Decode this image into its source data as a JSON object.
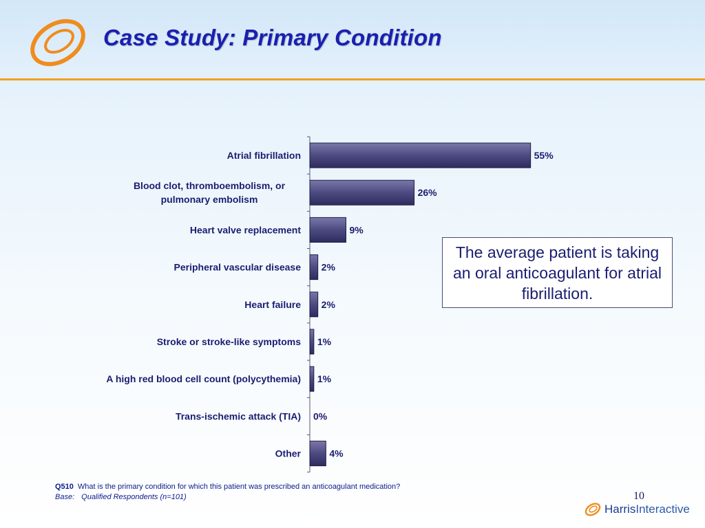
{
  "header": {
    "title": "Case Study: Primary Condition",
    "logo_icon": "harris-orbit-logo-icon"
  },
  "colors": {
    "accent_rule": "#f0a020",
    "title": "#1a1fb0",
    "bar_fill": "#4c4a80",
    "logo_orange": "#f08c1e"
  },
  "chart_data": {
    "type": "bar",
    "orientation": "horizontal",
    "categories": [
      "Atrial fibrillation",
      "Blood clot, thromboembolism, or pulmonary embolism",
      "Heart valve replacement",
      "Peripheral vascular disease",
      "Heart failure",
      "Stroke or stroke-like symptoms",
      "A high red blood cell count (polycythemia)",
      "Trans-ischemic attack (TIA)",
      "Other"
    ],
    "category_lines": [
      [
        "Atrial fibrillation"
      ],
      [
        "Blood clot, thromboembolism, or",
        "pulmonary embolism"
      ],
      [
        "Heart valve replacement"
      ],
      [
        "Peripheral vascular disease"
      ],
      [
        "Heart failure"
      ],
      [
        "Stroke or stroke-like symptoms"
      ],
      [
        "A high red blood cell count (polycythemia)"
      ],
      [
        "Trans-ischemic attack (TIA)"
      ],
      [
        "Other"
      ]
    ],
    "values": [
      55,
      26,
      9,
      2,
      2,
      1,
      1,
      0,
      4
    ],
    "data_labels": [
      "55%",
      "26%",
      "9%",
      "2%",
      "2%",
      "1%",
      "1%",
      "0%",
      "4%"
    ],
    "xlim": [
      0,
      100
    ],
    "grid": false,
    "legend": false
  },
  "callout": {
    "text": "The average patient is taking an oral anticoagulant for atrial fibrillation."
  },
  "footnote": {
    "code": "Q510",
    "question": "What is the primary condition for which this patient was prescribed an anticoagulant medication?",
    "base_label": "Base:",
    "base_text": "Qualified Respondents (n=101)"
  },
  "page_number": "10",
  "brand": {
    "name_part1": "Harris",
    "name_part2": "Interactive",
    "icon": "harris-orbit-logo-icon"
  }
}
